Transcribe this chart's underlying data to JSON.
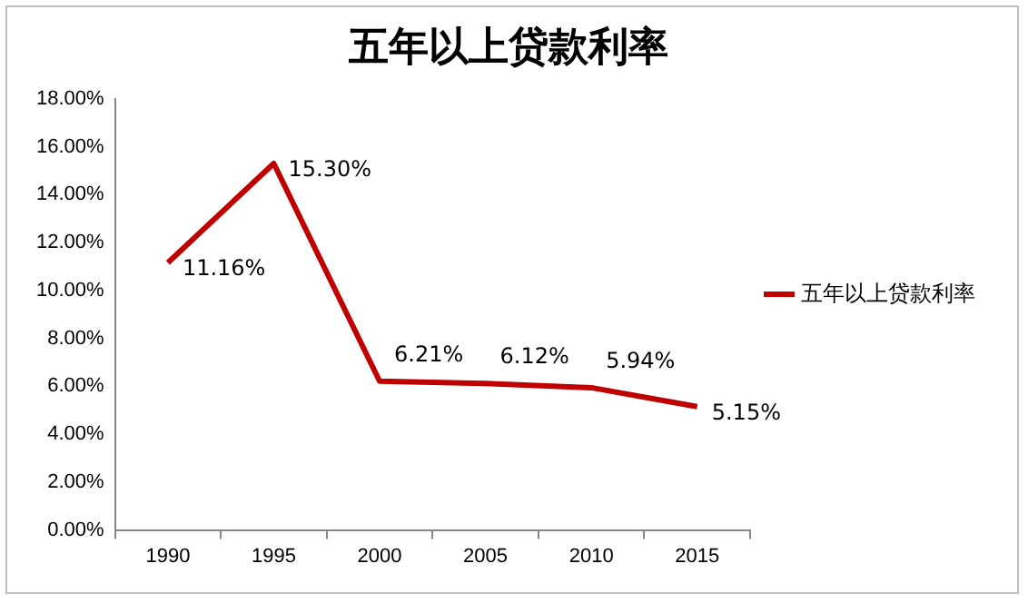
{
  "chart_data": {
    "type": "line",
    "title": "五年以上贷款利率",
    "categories": [
      "1990",
      "1995",
      "2000",
      "2005",
      "2010",
      "2015"
    ],
    "series": [
      {
        "name": "五年以上贷款利率",
        "color": "#c00000",
        "values": [
          11.16,
          15.3,
          6.21,
          6.12,
          5.94,
          5.15
        ],
        "value_labels": [
          "11.16%",
          "15.30%",
          "6.21%",
          "6.12%",
          "5.94%",
          "5.15%"
        ]
      }
    ],
    "ylim": [
      0,
      18
    ],
    "yticks": [
      {
        "value": 0,
        "label": "0.00%"
      },
      {
        "value": 2,
        "label": "2.00%"
      },
      {
        "value": 4,
        "label": "4.00%"
      },
      {
        "value": 6,
        "label": "6.00%"
      },
      {
        "value": 8,
        "label": "8.00%"
      },
      {
        "value": 10,
        "label": "10.00%"
      },
      {
        "value": 12,
        "label": "12.00%"
      },
      {
        "value": 14,
        "label": "14.00%"
      },
      {
        "value": 16,
        "label": "16.00%"
      },
      {
        "value": 18,
        "label": "18.00%"
      }
    ],
    "grid": false,
    "legend": "right",
    "marker": "none",
    "line_style": "solid"
  }
}
